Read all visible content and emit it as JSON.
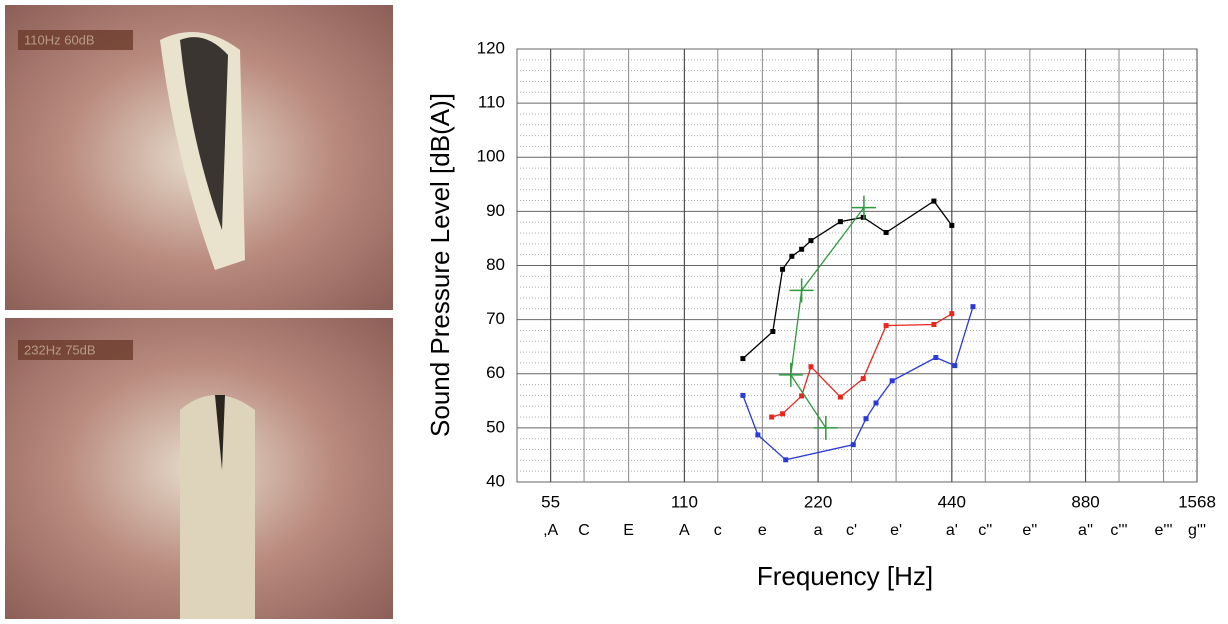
{
  "images": [
    {
      "overlay": "110Hz 60dB"
    },
    {
      "overlay": "232Hz 75dB"
    }
  ],
  "chart_data": {
    "type": "line",
    "x_label": "Frequency [Hz]",
    "y_label": "Sound Pressure Level [dB(A)]",
    "x_log": true,
    "grid": true,
    "xlim": [
      46.2,
      1568
    ],
    "xticks": [
      55,
      110,
      220,
      440,
      880,
      1568
    ],
    "note_ticks": [
      {
        "value": 55,
        "label": ",A"
      },
      {
        "value": 65.4,
        "label": "C"
      },
      {
        "value": 82.4,
        "label": "E"
      },
      {
        "value": 110,
        "label": "A"
      },
      {
        "value": 130.8,
        "label": "c"
      },
      {
        "value": 164.8,
        "label": "e"
      },
      {
        "value": 220,
        "label": "a"
      },
      {
        "value": 261.6,
        "label": "c'"
      },
      {
        "value": 329.6,
        "label": "e'"
      },
      {
        "value": 440,
        "label": "a'"
      },
      {
        "value": 523.3,
        "label": "c''"
      },
      {
        "value": 659.3,
        "label": "e''"
      },
      {
        "value": 880,
        "label": "a''"
      },
      {
        "value": 1046.5,
        "label": "c'''"
      },
      {
        "value": 1318.5,
        "label": "e'''"
      },
      {
        "value": 1568,
        "label": "g'''"
      }
    ],
    "ylim": [
      40,
      120
    ],
    "yticks": [
      40,
      50,
      60,
      70,
      80,
      90,
      100,
      110,
      120
    ],
    "series": [
      {
        "color": "#000000",
        "marker": "square",
        "x": [
          149,
          174,
          183,
          192,
          202,
          212,
          247,
          278,
          313,
          401,
          440
        ],
        "values": [
          62.8,
          67.8,
          79.3,
          81.7,
          83,
          84.6,
          88.1,
          88.9,
          86.1,
          91.9,
          87.4
        ]
      },
      {
        "color": "#e8251f",
        "marker": "square",
        "x": [
          173,
          183,
          202,
          212,
          247,
          278,
          313,
          401,
          440
        ],
        "values": [
          52,
          52.6,
          55.9,
          61.3,
          55.7,
          59.1,
          68.9,
          69.1,
          71.1
        ]
      },
      {
        "color": "#2a3ad6",
        "marker": "square",
        "x": [
          149,
          161,
          186,
          264,
          282,
          297,
          323,
          405,
          447,
          491
        ],
        "values": [
          56,
          48.7,
          44.1,
          46.9,
          51.7,
          54.6,
          58.7,
          63,
          61.5,
          72.4
        ]
      },
      {
        "color": "#2e9a3e",
        "marker": "cross",
        "x": [
          279,
          202,
          191,
          229
        ],
        "values": [
          90.7,
          75.4,
          59.8,
          50
        ]
      }
    ]
  }
}
